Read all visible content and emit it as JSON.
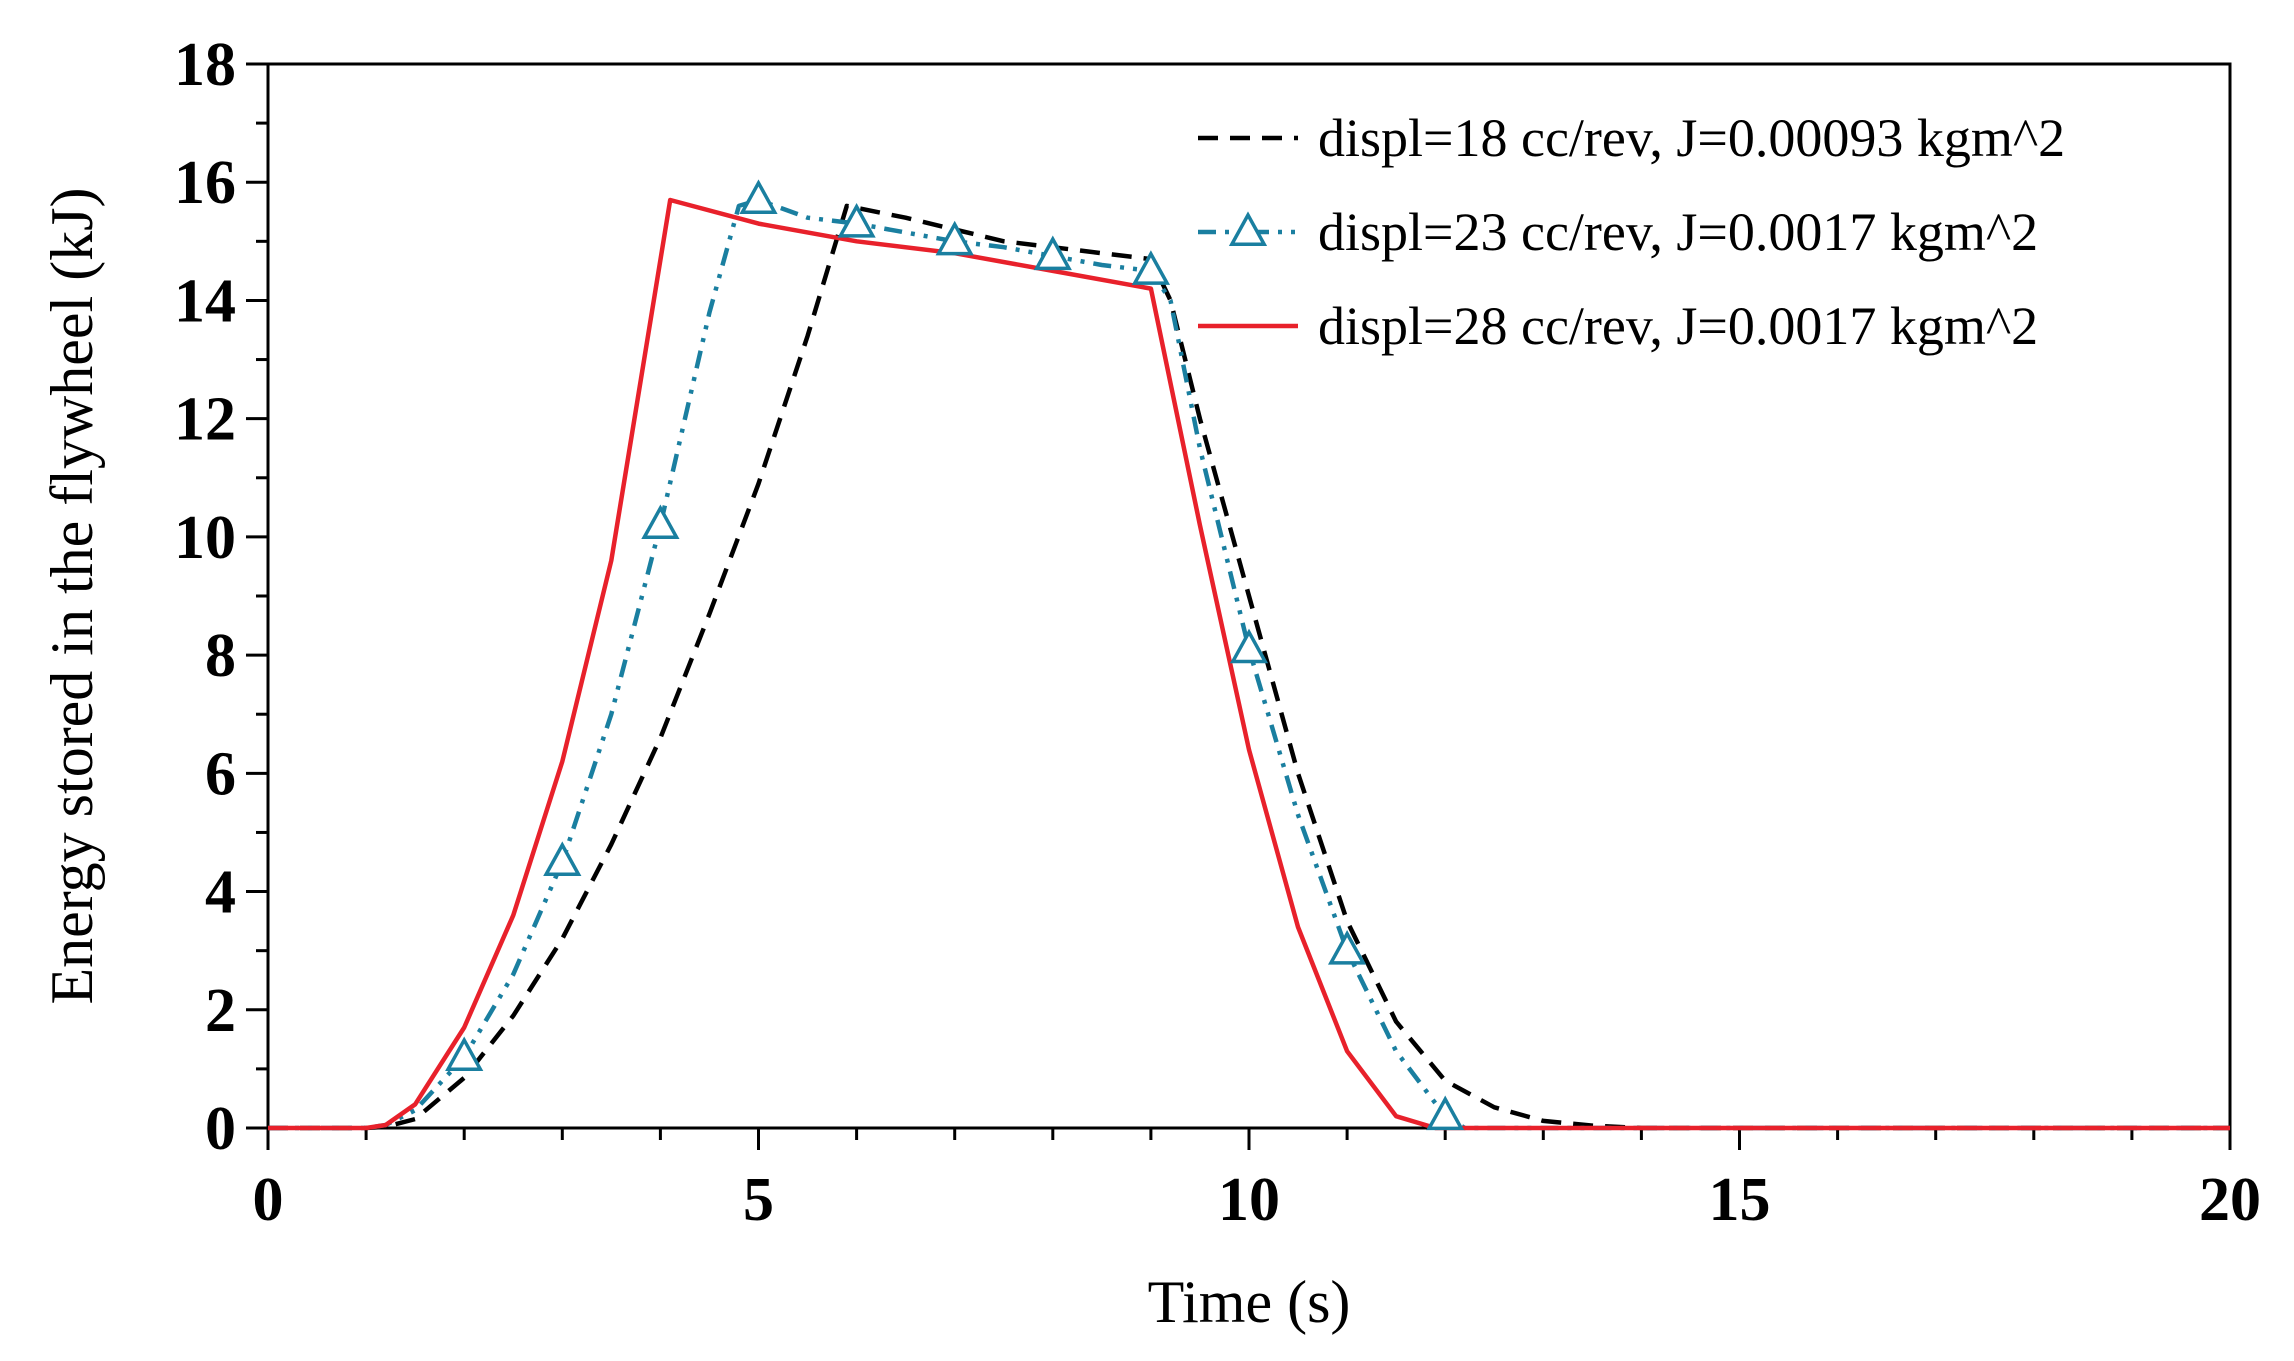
{
  "chart_data": {
    "type": "line",
    "title": "",
    "xlabel": "Time (s)",
    "ylabel": "Energy stored in the flywheel (kJ)",
    "xlim": [
      0,
      20
    ],
    "ylim": [
      0,
      18
    ],
    "xticks": [
      0,
      5,
      10,
      15,
      20
    ],
    "xtick_labels": [
      "0",
      "5",
      "10",
      "15",
      "20"
    ],
    "yticks": [
      0,
      2,
      4,
      6,
      8,
      10,
      12,
      14,
      16,
      18
    ],
    "ytick_labels": [
      "0",
      "2",
      "4",
      "6",
      "8",
      "10",
      "12",
      "14",
      "16",
      "18"
    ],
    "grid": false,
    "legend_position": "top-right",
    "series": [
      {
        "name": "displ=18 cc/rev, J=0.00093 kgm^2",
        "color": "#000000",
        "dash": "dashed",
        "marker": "none",
        "x": [
          0,
          1.0,
          1.2,
          1.5,
          2,
          2.5,
          3,
          3.5,
          4,
          4.5,
          5,
          5.5,
          5.9,
          6.5,
          7,
          7.5,
          8,
          8.5,
          9.0,
          9.2,
          9.5,
          10,
          10.5,
          11,
          11.5,
          12,
          12.5,
          13,
          13.5,
          14,
          20
        ],
        "y": [
          0,
          0,
          0.02,
          0.15,
          0.85,
          1.9,
          3.2,
          4.8,
          6.6,
          8.7,
          10.9,
          13.4,
          15.6,
          15.4,
          15.2,
          15.0,
          14.9,
          14.8,
          14.7,
          14.0,
          12.0,
          9.0,
          6.0,
          3.5,
          1.8,
          0.8,
          0.35,
          0.12,
          0.04,
          0.0,
          0
        ]
      },
      {
        "name": "displ=23 cc/rev, J=0.0017 kgm^2",
        "color": "#1a7fa0",
        "dash": "dash-dot-dot",
        "marker": "triangle",
        "x": [
          0,
          1.0,
          1.2,
          1.5,
          2,
          2.5,
          3,
          3.5,
          4,
          4.5,
          4.8,
          5,
          5.5,
          6,
          6.5,
          7,
          7.5,
          8,
          8.5,
          9.0,
          9.2,
          9.5,
          10,
          10.5,
          11,
          11.5,
          12,
          12.2,
          20
        ],
        "y": [
          0,
          0,
          0.05,
          0.3,
          1.2,
          2.6,
          4.5,
          7.0,
          10.2,
          13.8,
          15.6,
          15.7,
          15.4,
          15.3,
          15.15,
          15.0,
          14.9,
          14.75,
          14.6,
          14.5,
          14.0,
          11.5,
          8.1,
          5.3,
          3.0,
          1.3,
          0.2,
          0.0,
          0
        ]
      },
      {
        "name": "displ=28 cc/rev, J=0.0017 kgm^2",
        "color": "#e8212b",
        "dash": "solid",
        "marker": "none",
        "x": [
          0,
          1.0,
          1.2,
          1.5,
          2,
          2.5,
          3,
          3.5,
          4.1,
          5,
          6,
          7,
          8,
          9.0,
          9.5,
          10,
          10.5,
          11,
          11.5,
          11.9,
          12.0,
          20
        ],
        "y": [
          0,
          0,
          0.05,
          0.4,
          1.7,
          3.6,
          6.2,
          9.6,
          15.7,
          15.3,
          15.0,
          14.8,
          14.5,
          14.2,
          10.2,
          6.4,
          3.4,
          1.3,
          0.2,
          0.0,
          0.0,
          0
        ]
      }
    ],
    "markers": {
      "displ=23 cc/rev, J=0.0017 kgm^2": {
        "x": [
          2,
          3,
          4,
          5,
          6,
          7,
          8,
          9,
          10,
          11,
          12
        ],
        "y": [
          1.2,
          4.5,
          10.2,
          15.7,
          15.3,
          15.0,
          14.75,
          14.5,
          8.1,
          3.0,
          0.2
        ]
      }
    }
  }
}
